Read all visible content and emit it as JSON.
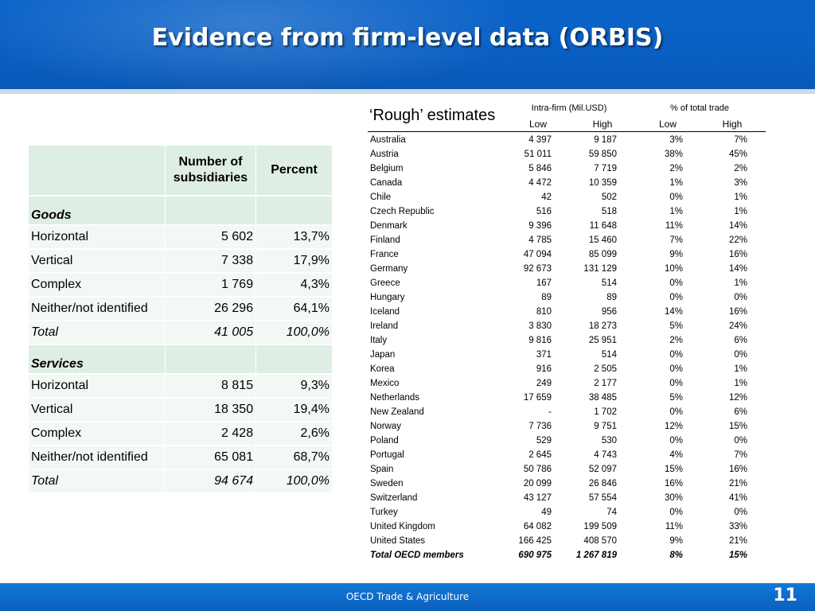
{
  "header": {
    "title": "Evidence from firm-level data (ORBIS)"
  },
  "left_table": {
    "columns": [
      "Number of subsidiaries",
      "Percent"
    ],
    "sections": [
      {
        "name": "Goods",
        "rows": [
          [
            "Horizontal",
            "5 602",
            "13,7%"
          ],
          [
            "Vertical",
            "7 338",
            "17,9%"
          ],
          [
            "Complex",
            "1 769",
            "4,3%"
          ],
          [
            "Neither/not identified",
            "26 296",
            "64,1%"
          ],
          [
            "Total",
            "41 005",
            "100,0%"
          ]
        ]
      },
      {
        "name": "Services",
        "rows": [
          [
            "Horizontal",
            "8 815",
            "9,3%"
          ],
          [
            "Vertical",
            "18 350",
            "19,4%"
          ],
          [
            "Complex",
            "2 428",
            "2,6%"
          ],
          [
            "Neither/not identified",
            "65 081",
            "68,7%"
          ],
          [
            "Total",
            "94 674",
            "100,0%"
          ]
        ]
      }
    ]
  },
  "right_table": {
    "title": "‘Rough’ estimates",
    "group_headers": [
      "Intra-firm (Mil.USD)",
      "% of total trade"
    ],
    "sub_headers": [
      "Low",
      "High",
      "Low",
      "High"
    ],
    "rows": [
      [
        "Australia",
        "4 397",
        "9 187",
        "3%",
        "7%"
      ],
      [
        "Austria",
        "51 011",
        "59 850",
        "38%",
        "45%"
      ],
      [
        "Belgium",
        "5 846",
        "7 719",
        "2%",
        "2%"
      ],
      [
        "Canada",
        "4 472",
        "10 359",
        "1%",
        "3%"
      ],
      [
        "Chile",
        "42",
        "502",
        "0%",
        "1%"
      ],
      [
        "Czech Republic",
        "516",
        "518",
        "1%",
        "1%"
      ],
      [
        "Denmark",
        "9 396",
        "11 648",
        "11%",
        "14%"
      ],
      [
        "Finland",
        "4 785",
        "15 460",
        "7%",
        "22%"
      ],
      [
        "France",
        "47 094",
        "85 099",
        "9%",
        "16%"
      ],
      [
        "Germany",
        "92 673",
        "131 129",
        "10%",
        "14%"
      ],
      [
        "Greece",
        "167",
        "514",
        "0%",
        "1%"
      ],
      [
        "Hungary",
        "89",
        "89",
        "0%",
        "0%"
      ],
      [
        "Iceland",
        "810",
        "956",
        "14%",
        "16%"
      ],
      [
        "Ireland",
        "3 830",
        "18 273",
        "5%",
        "24%"
      ],
      [
        "Italy",
        "9 816",
        "25 951",
        "2%",
        "6%"
      ],
      [
        "Japan",
        "371",
        "514",
        "0%",
        "0%"
      ],
      [
        "Korea",
        "916",
        "2 505",
        "0%",
        "1%"
      ],
      [
        "Mexico",
        "249",
        "2 177",
        "0%",
        "1%"
      ],
      [
        "Netherlands",
        "17 659",
        "38 485",
        "5%",
        "12%"
      ],
      [
        "New Zealand",
        "-",
        "1 702",
        "0%",
        "6%"
      ],
      [
        "Norway",
        "7 736",
        "9 751",
        "12%",
        "15%"
      ],
      [
        "Poland",
        "529",
        "530",
        "0%",
        "0%"
      ],
      [
        "Portugal",
        "2 645",
        "4 743",
        "4%",
        "7%"
      ],
      [
        "Spain",
        "50 786",
        "52 097",
        "15%",
        "16%"
      ],
      [
        "Sweden",
        "20 099",
        "26 846",
        "16%",
        "21%"
      ],
      [
        "Switzerland",
        "43 127",
        "57 554",
        "30%",
        "41%"
      ],
      [
        "Turkey",
        "49",
        "74",
        "0%",
        "0%"
      ],
      [
        "United Kingdom",
        "64 082",
        "199 509",
        "11%",
        "33%"
      ],
      [
        "United States",
        "166 425",
        "408 570",
        "9%",
        "21%"
      ],
      [
        "Total OECD members",
        "690 975",
        "1 267 819",
        "8%",
        "15%"
      ]
    ]
  },
  "footer": {
    "text": "OECD Trade & Agriculture",
    "page_number": "11"
  }
}
